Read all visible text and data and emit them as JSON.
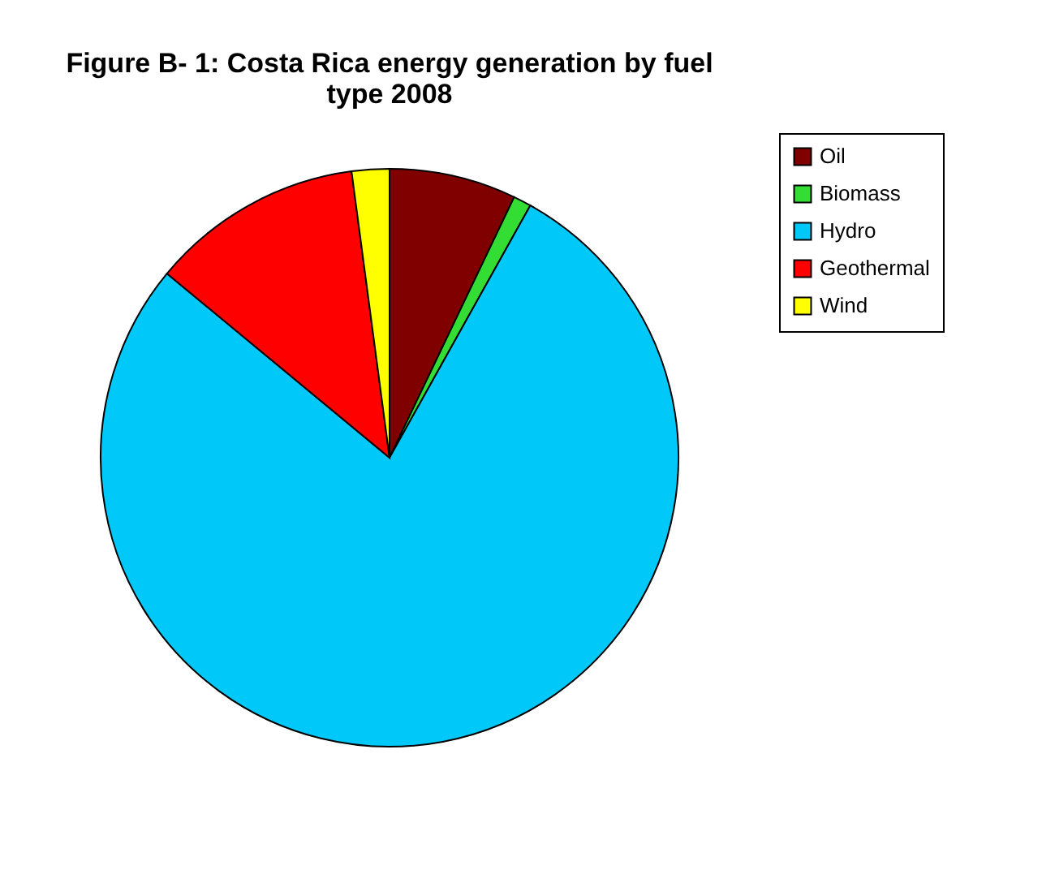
{
  "chart_data": {
    "type": "pie",
    "title": "Figure B- 1:  Costa Rica energy generation by fuel type 2008",
    "categories": [
      "Oil",
      "Biomass",
      "Hydro",
      "Geothermal",
      "Wind"
    ],
    "values": [
      7.1,
      1.0,
      77.9,
      11.9,
      2.1
    ],
    "colors": [
      "#800000",
      "#33dd33",
      "#00c8f8",
      "#ff0000",
      "#ffff00"
    ],
    "legend": "right"
  }
}
